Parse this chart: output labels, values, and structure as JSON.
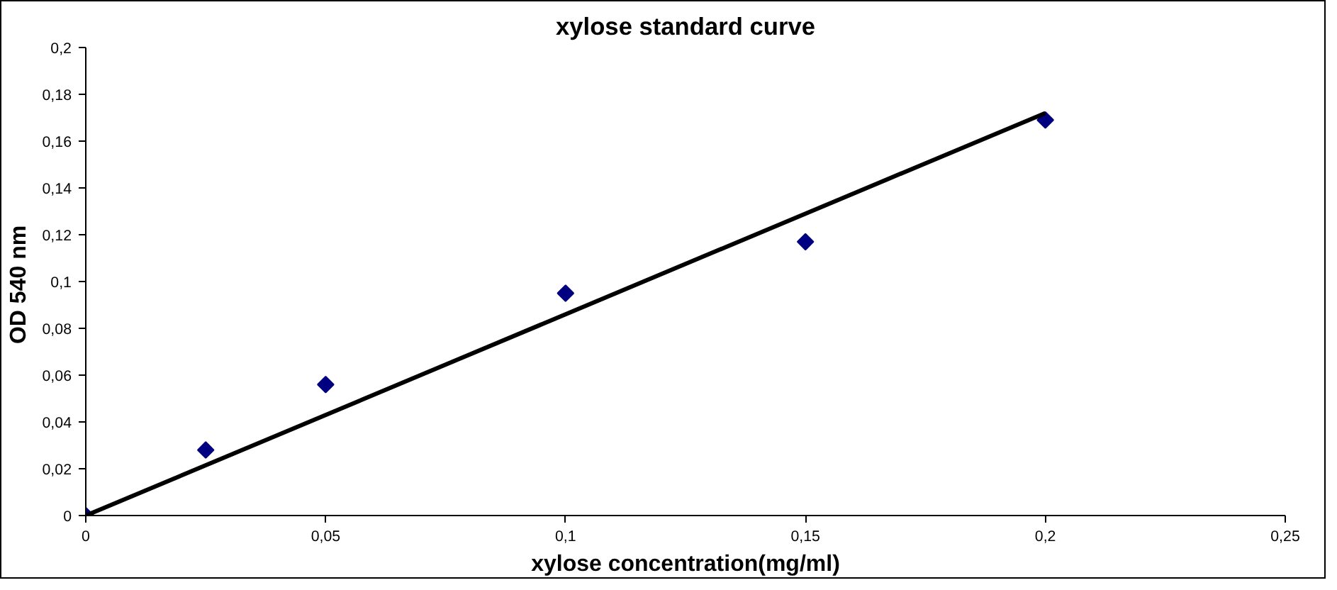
{
  "chart_data": {
    "type": "scatter",
    "title": "xylose standard curve",
    "xlabel": "xylose concentration(mg/ml)",
    "ylabel": "OD  540 nm",
    "x": [
      0,
      0.025,
      0.05,
      0.1,
      0.15,
      0.2
    ],
    "series": [
      {
        "color": "#000080",
        "marker": "diamond",
        "values": [
          0,
          0.028,
          0.056,
          0.095,
          0.117,
          0.169
        ]
      },
      {
        "type": "line",
        "color": "#000000",
        "x": [
          0,
          0.2
        ],
        "values": [
          0,
          0.172
        ]
      }
    ],
    "xlim": [
      0,
      0.25
    ],
    "ylim": [
      0,
      0.2
    ],
    "xticks": [
      0,
      {
        "value": 0.05,
        "label": "0,05"
      },
      {
        "value": 0.1,
        "label": "0,1"
      },
      {
        "value": 0.15,
        "label": "0,15"
      },
      {
        "value": 0.2,
        "label": "0,2"
      },
      {
        "value": 0.25,
        "label": "0,25"
      }
    ],
    "yticks": [
      0,
      {
        "value": 0.02,
        "label": "0,02"
      },
      {
        "value": 0.04,
        "label": "0,04"
      },
      {
        "value": 0.06,
        "label": "0,06"
      },
      {
        "value": 0.08,
        "label": "0,08"
      },
      {
        "value": 0.1,
        "label": "0,1"
      },
      {
        "value": 0.12,
        "label": "0,12"
      },
      {
        "value": 0.14,
        "label": "0,14"
      },
      {
        "value": 0.16,
        "label": "0,16"
      },
      {
        "value": 0.18,
        "label": "0,18"
      },
      {
        "value": 0.2,
        "label": "0,2"
      }
    ],
    "grid": false
  }
}
